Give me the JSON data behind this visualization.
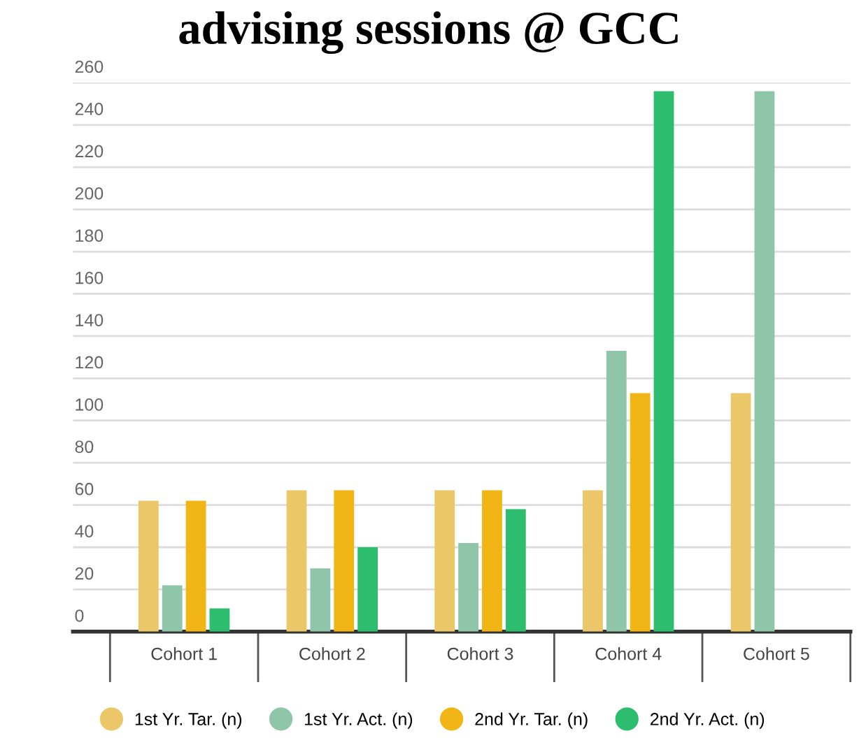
{
  "chart_data": {
    "type": "bar",
    "title": "advising sessions @ GCC",
    "categories": [
      "Cohort 1",
      "Cohort 2",
      "Cohort 3",
      "Cohort 4",
      "Cohort 5"
    ],
    "series": [
      {
        "name": "1st Yr. Tar. (n)",
        "color": "#ecc76a",
        "values": [
          62,
          67,
          67,
          67,
          113
        ]
      },
      {
        "name": "1st Yr. Act. (n)",
        "color": "#8fc5a8",
        "values": [
          22,
          30,
          42,
          133,
          256
        ]
      },
      {
        "name": "2nd Yr. Tar. (n)",
        "color": "#f2b516",
        "values": [
          62,
          67,
          67,
          113,
          null
        ]
      },
      {
        "name": "2nd Yr. Act. (n)",
        "color": "#2dbd6e",
        "values": [
          11,
          40,
          58,
          256,
          null
        ]
      }
    ],
    "ylim": [
      0,
      260
    ],
    "yticks": [
      0,
      20,
      40,
      60,
      80,
      100,
      120,
      140,
      160,
      180,
      200,
      220,
      240,
      260
    ],
    "grid": "y",
    "legend": "bottom"
  }
}
